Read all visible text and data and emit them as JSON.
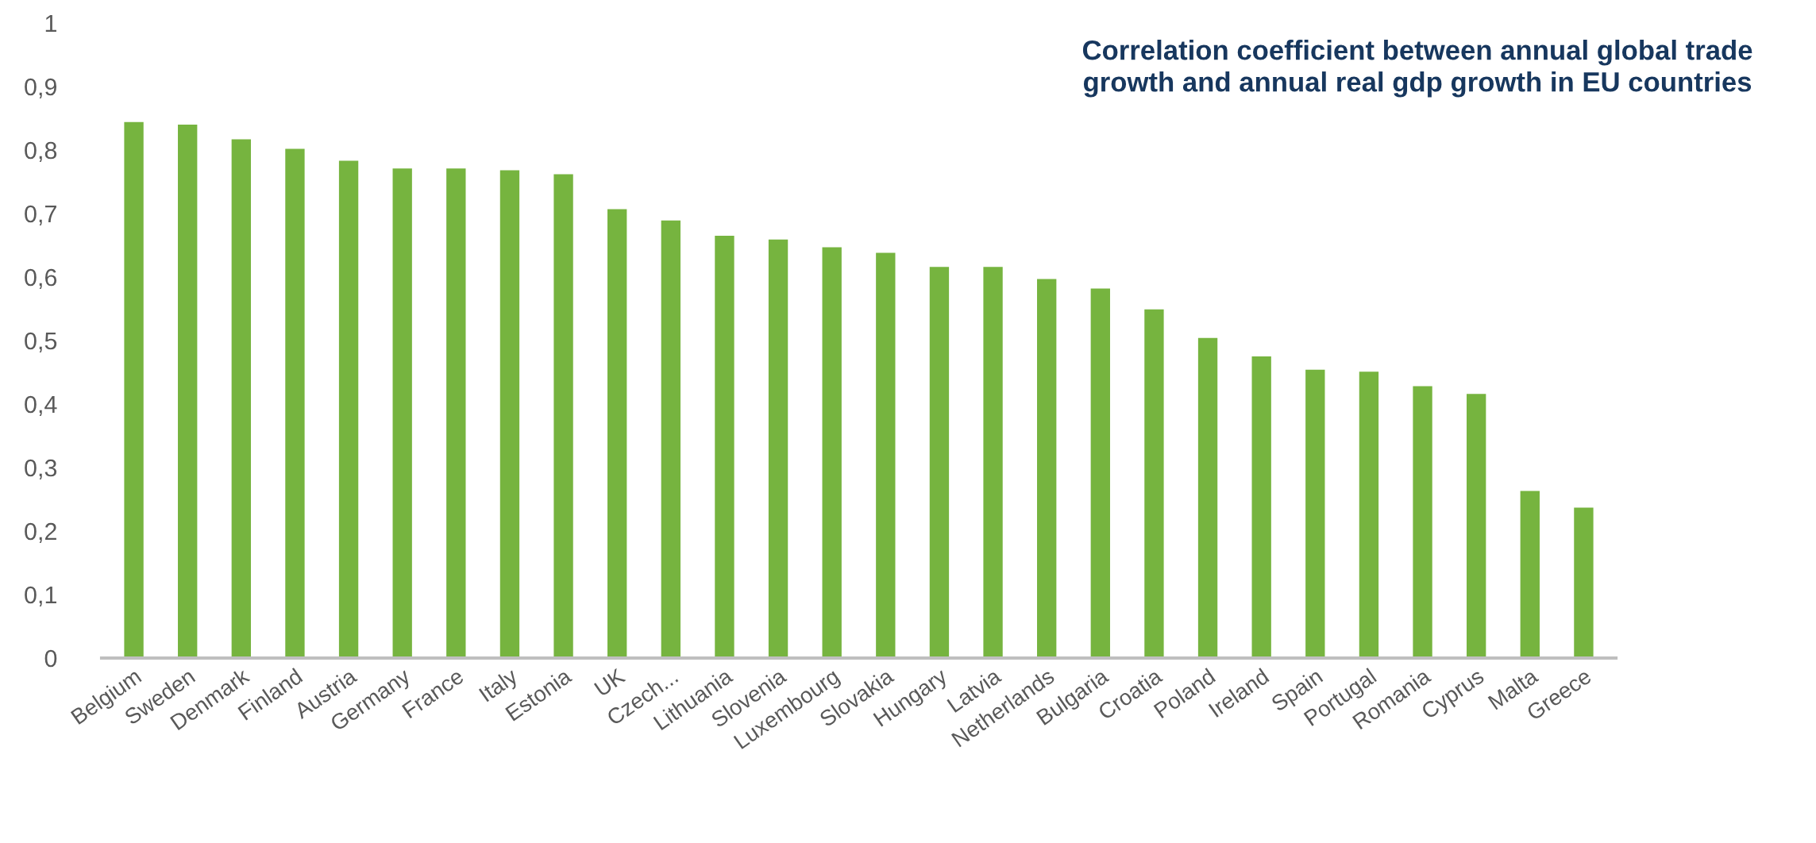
{
  "chart_data": {
    "type": "bar",
    "title": "Correlation coefficient between annual global trade\ngrowth and annual real gdp growth in EU countries",
    "categories": [
      "Belgium",
      "Sweden",
      "Denmark",
      "Finland",
      "Austria",
      "Germany",
      "France",
      "Italy",
      "Estonia",
      "UK",
      "Czech...",
      "Lithuania",
      "Slovenia",
      "Luxembourg",
      "Slovakia",
      "Hungary",
      "Latvia",
      "Netherlands",
      "Bulgaria",
      "Croatia",
      "Poland",
      "Ireland",
      "Spain",
      "Portugal",
      "Romania",
      "Cyprus",
      "Malta",
      "Greece"
    ],
    "values": [
      0.844,
      0.84,
      0.817,
      0.802,
      0.783,
      0.771,
      0.771,
      0.768,
      0.762,
      0.707,
      0.689,
      0.665,
      0.659,
      0.647,
      0.638,
      0.616,
      0.616,
      0.597,
      0.582,
      0.549,
      0.504,
      0.475,
      0.454,
      0.451,
      0.428,
      0.416,
      0.263,
      0.237
    ],
    "color": "#76b43f",
    "ylim": [
      0,
      1
    ],
    "yticks": [
      0,
      {
        "value": 0.1,
        "label": "0,1"
      },
      {
        "value": 0.2,
        "label": "0,2"
      },
      {
        "value": 0.3,
        "label": "0,3"
      },
      {
        "value": 0.4,
        "label": "0,4"
      },
      {
        "value": 0.5,
        "label": "0,5"
      },
      {
        "value": 0.6,
        "label": "0,6"
      },
      {
        "value": 0.7,
        "label": "0,7"
      },
      {
        "value": 0.8,
        "label": "0,8"
      },
      {
        "value": 0.9,
        "label": "0,9"
      },
      1
    ],
    "grid": false,
    "legend": false
  }
}
